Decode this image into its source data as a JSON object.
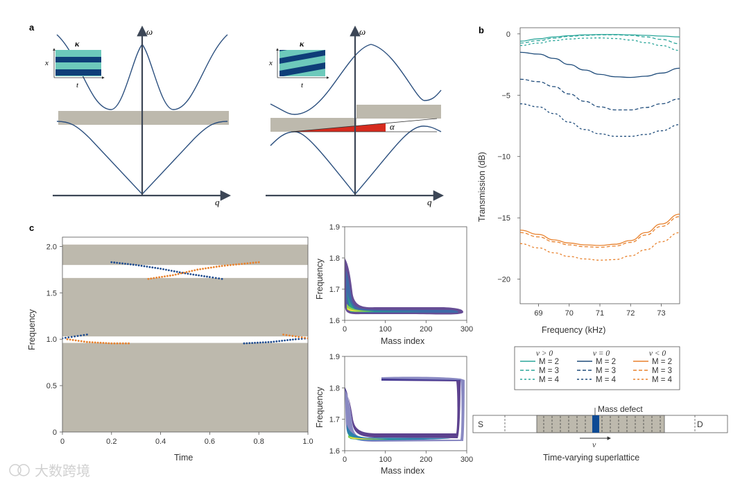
{
  "panels": {
    "a": {
      "label": "a",
      "left": {
        "y_axis": "ω",
        "x_axis": "q",
        "inset": {
          "title": "κ",
          "xlabel": "t",
          "ylabel": "x"
        }
      },
      "right": {
        "y_axis": "ω",
        "x_axis": "q",
        "angle": "α",
        "inset": {
          "title": "κ",
          "xlabel": "t",
          "ylabel": "x"
        }
      }
    },
    "b": {
      "label": "b"
    },
    "c": {
      "label": "c"
    }
  },
  "chart_data": [
    {
      "id": "b",
      "type": "line",
      "xlabel": "Frequency (kHz)",
      "ylabel": "Transmission (dB)",
      "xlim": [
        68.4,
        73.6
      ],
      "ylim": [
        -22,
        0.5
      ],
      "xticks": [
        "69",
        "70",
        "71",
        "72",
        "73"
      ],
      "yticks": [
        "0",
        "−5",
        "−10",
        "−15",
        "−20"
      ],
      "x": [
        68.4,
        69.0,
        69.5,
        70.0,
        70.5,
        71.0,
        71.5,
        72.0,
        72.5,
        73.0,
        73.6
      ],
      "series": [
        {
          "name": "v>0 M=2",
          "group": "pos",
          "M": 2,
          "values": [
            -0.6,
            -0.4,
            -0.25,
            -0.15,
            -0.08,
            -0.05,
            -0.05,
            -0.08,
            -0.12,
            -0.18,
            -0.25
          ]
        },
        {
          "name": "v>0 M=3",
          "group": "pos",
          "M": 3,
          "values": [
            -0.75,
            -0.55,
            -0.35,
            -0.2,
            -0.12,
            -0.08,
            -0.08,
            -0.12,
            -0.25,
            -0.45,
            -0.8
          ]
        },
        {
          "name": "v>0 M=4",
          "group": "pos",
          "M": 4,
          "values": [
            -0.95,
            -0.75,
            -0.55,
            -0.42,
            -0.35,
            -0.33,
            -0.38,
            -0.5,
            -0.72,
            -0.95,
            -1.35
          ]
        },
        {
          "name": "v=0 M=2",
          "group": "zero",
          "M": 2,
          "values": [
            -1.5,
            -1.65,
            -2.0,
            -2.5,
            -2.95,
            -3.3,
            -3.5,
            -3.55,
            -3.45,
            -3.2,
            -2.8
          ]
        },
        {
          "name": "v=0 M=3",
          "group": "zero",
          "M": 3,
          "values": [
            -3.7,
            -3.9,
            -4.3,
            -4.9,
            -5.5,
            -5.95,
            -6.2,
            -6.2,
            -6.0,
            -5.7,
            -5.3
          ]
        },
        {
          "name": "v=0 M=4",
          "group": "zero",
          "M": 4,
          "values": [
            -5.7,
            -5.95,
            -6.5,
            -7.2,
            -7.8,
            -8.15,
            -8.35,
            -8.35,
            -8.2,
            -7.9,
            -7.4
          ]
        },
        {
          "name": "v<0 M=2",
          "group": "neg",
          "M": 2,
          "values": [
            -16.0,
            -16.35,
            -16.8,
            -17.05,
            -17.2,
            -17.25,
            -17.15,
            -16.85,
            -16.2,
            -15.5,
            -14.7
          ]
        },
        {
          "name": "v<0 M=3",
          "group": "neg",
          "M": 3,
          "values": [
            -16.2,
            -16.55,
            -16.95,
            -17.2,
            -17.35,
            -17.4,
            -17.3,
            -17.0,
            -16.4,
            -15.7,
            -14.9
          ]
        },
        {
          "name": "v<0 M=4",
          "group": "neg",
          "M": 4,
          "values": [
            -17.1,
            -17.45,
            -17.85,
            -18.15,
            -18.35,
            -18.45,
            -18.4,
            -18.1,
            -17.6,
            -16.95,
            -16.2
          ]
        }
      ],
      "legend": {
        "headers": [
          "v > 0",
          "v = 0",
          "v < 0"
        ],
        "entries": [
          "M = 2",
          "M = 3",
          "M = 4"
        ]
      }
    },
    {
      "id": "c-main",
      "type": "scatter",
      "xlabel": "Time",
      "ylabel": "Frequency",
      "xlim": [
        0,
        1.0
      ],
      "ylim": [
        0,
        2.1
      ],
      "xticks": [
        "0",
        "0.2",
        "0.4",
        "0.6",
        "0.8",
        "1.0"
      ],
      "yticks": [
        "0",
        "0.5",
        "1.0",
        "1.5",
        "2.0"
      ],
      "bands": [
        [
          0,
          0.96
        ],
        [
          1.03,
          1.66
        ],
        [
          1.8,
          2.02
        ]
      ],
      "series": [
        {
          "name": "blue upper",
          "color": "blue",
          "points": [
            [
              0.2,
              1.83
            ],
            [
              0.3,
              1.8
            ],
            [
              0.4,
              1.76
            ],
            [
              0.5,
              1.71
            ],
            [
              0.6,
              1.67
            ],
            [
              0.65,
              1.65
            ]
          ]
        },
        {
          "name": "orange upper",
          "color": "orange",
          "points": [
            [
              0.35,
              1.65
            ],
            [
              0.45,
              1.69
            ],
            [
              0.55,
              1.75
            ],
            [
              0.65,
              1.79
            ],
            [
              0.8,
              1.83
            ]
          ]
        },
        {
          "name": "blue lower left",
          "color": "blue",
          "points": [
            [
              0.0,
              1.01
            ],
            [
              0.05,
              1.03
            ],
            [
              0.1,
              1.05
            ]
          ]
        },
        {
          "name": "orange lower left",
          "color": "orange",
          "points": [
            [
              0.02,
              1.0
            ],
            [
              0.1,
              0.97
            ],
            [
              0.2,
              0.955
            ],
            [
              0.27,
              0.955
            ]
          ]
        },
        {
          "name": "blue lower right",
          "color": "blue",
          "points": [
            [
              0.74,
              0.955
            ],
            [
              0.85,
              0.97
            ],
            [
              0.95,
              1.0
            ],
            [
              1.0,
              1.01
            ]
          ]
        },
        {
          "name": "orange lower right",
          "color": "orange",
          "points": [
            [
              0.9,
              1.05
            ],
            [
              0.95,
              1.03
            ],
            [
              1.0,
              1.01
            ]
          ]
        }
      ]
    },
    {
      "id": "c-top",
      "type": "heatmap",
      "xlabel": "Mass index",
      "ylabel": "Frequency",
      "xlim": [
        0,
        300
      ],
      "ylim": [
        1.6,
        1.9
      ],
      "xticks": [
        "0",
        "100",
        "200",
        "300"
      ],
      "yticks": [
        "1.6",
        "1.7",
        "1.8",
        "1.9"
      ]
    },
    {
      "id": "c-bottom",
      "type": "heatmap",
      "xlabel": "Mass index",
      "ylabel": "Frequency",
      "xlim": [
        0,
        300
      ],
      "ylim": [
        1.6,
        1.9
      ],
      "xticks": [
        "0",
        "100",
        "200",
        "300"
      ],
      "yticks": [
        "1.6",
        "1.7",
        "1.8",
        "1.9"
      ]
    }
  ],
  "superlattice": {
    "source": "S",
    "drain": "D",
    "defect_label": "Mass defect",
    "velocity": "v",
    "caption": "Time-varying superlattice"
  },
  "watermark": {
    "text": "大数跨境"
  },
  "colors": {
    "teal": "#2aa69a",
    "navy": "#1e4b7a",
    "orange": "#e8812c",
    "band": "#bdb9ad",
    "red": "#d62b1e"
  }
}
